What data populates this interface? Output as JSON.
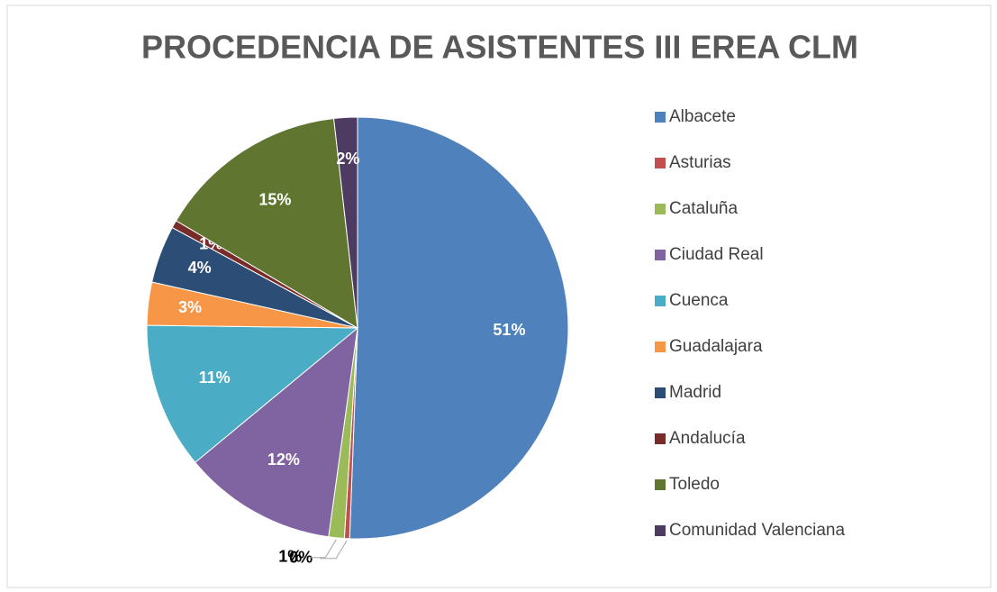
{
  "chart_data": {
    "type": "pie",
    "title": "PROCEDENCIA DE ASISTENTES III EREA CLM",
    "categories": [
      "Albacete",
      "Asturias",
      "Cataluña",
      "Ciudad Real",
      "Cuenca",
      "Guadalajara",
      "Madrid",
      "Andalucía",
      "Toledo",
      "Comunidad Valenciana"
    ],
    "values": [
      50.6,
      0.4,
      1.2,
      11.8,
      11.2,
      3.3,
      4.4,
      0.6,
      14.7,
      1.8
    ],
    "value_labels": [
      "51%",
      "0%",
      "1%",
      "12%",
      "11%",
      "3%",
      "4%",
      "1%",
      "15%",
      "2%"
    ],
    "colors": [
      "#4f81bd",
      "#c0504d",
      "#9bbb59",
      "#8064a2",
      "#4bacc6",
      "#f79646",
      "#2c4d75",
      "#772c2a",
      "#5f7530",
      "#4d3b62"
    ],
    "legend": "right"
  }
}
